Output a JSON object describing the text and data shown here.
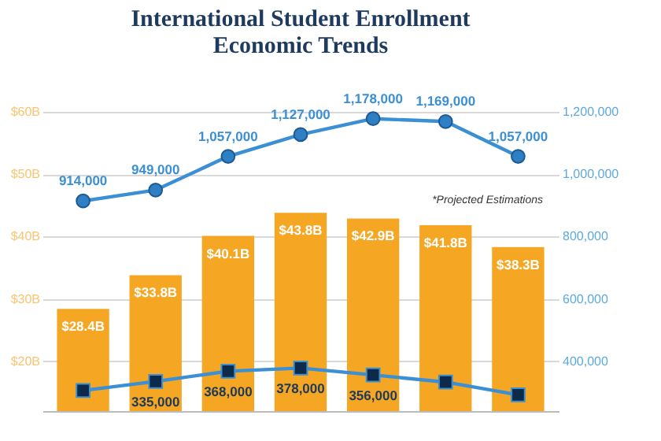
{
  "chart_data": {
    "type": "bar",
    "title": "International Student Enrollment\nEconomic Trends",
    "categories": [
      null,
      null,
      null,
      null,
      null,
      null,
      null
    ],
    "series": [
      {
        "color": "#f5a623",
        "values": [
          28.4,
          33.8,
          40.1,
          43.8,
          42.9,
          41.8,
          38.3
        ],
        "value_labels": [
          "$28.4B",
          "$33.8B",
          "$40.1B",
          "$43.8B",
          "$42.9B",
          "$41.8B",
          "$38.3B"
        ]
      },
      {
        "type": "line",
        "axis": "y2",
        "color": "#3b8fd4",
        "marker": "circle",
        "line_style": "solid",
        "values": [
          914000,
          949000,
          1057000,
          1127000,
          1178000,
          1169000,
          1057000
        ],
        "value_labels": [
          "914,000",
          "949,000",
          "1,057,000",
          "1,127,000",
          "1,178,000",
          "1,169,000",
          "1,057,000"
        ]
      },
      {
        "type": "line",
        "axis": "y2",
        "color": "#3b8fd4",
        "marker": "square",
        "line_style": "solid",
        "values": [
          306000,
          335000,
          368000,
          378000,
          356000,
          333000,
          292000
        ],
        "value_labels": [
          null,
          "335,000",
          "368,000",
          "378,000",
          "356,000",
          null,
          null
        ]
      }
    ],
    "ylim": [
      12,
      60
    ],
    "yticks": [
      {
        "value": 20,
        "label": "$20B"
      },
      {
        "value": 30,
        "label": "$30B"
      },
      {
        "value": 40,
        "label": "$40B"
      },
      {
        "value": 50,
        "label": "$50B"
      },
      {
        "value": 60,
        "label": "$60B"
      }
    ],
    "y2lim": [
      240000,
      1200000
    ],
    "y2ticks": [
      {
        "value": 400000,
        "label": "400,000"
      },
      {
        "value": 600000,
        "label": "600,000"
      },
      {
        "value": 800000,
        "label": "800,000"
      },
      {
        "value": 1000000,
        "label": "1,000,000"
      },
      {
        "value": 1200000,
        "label": "1,200,000"
      }
    ],
    "annotations": [
      "*Projected Estimations"
    ],
    "grid": "y"
  }
}
